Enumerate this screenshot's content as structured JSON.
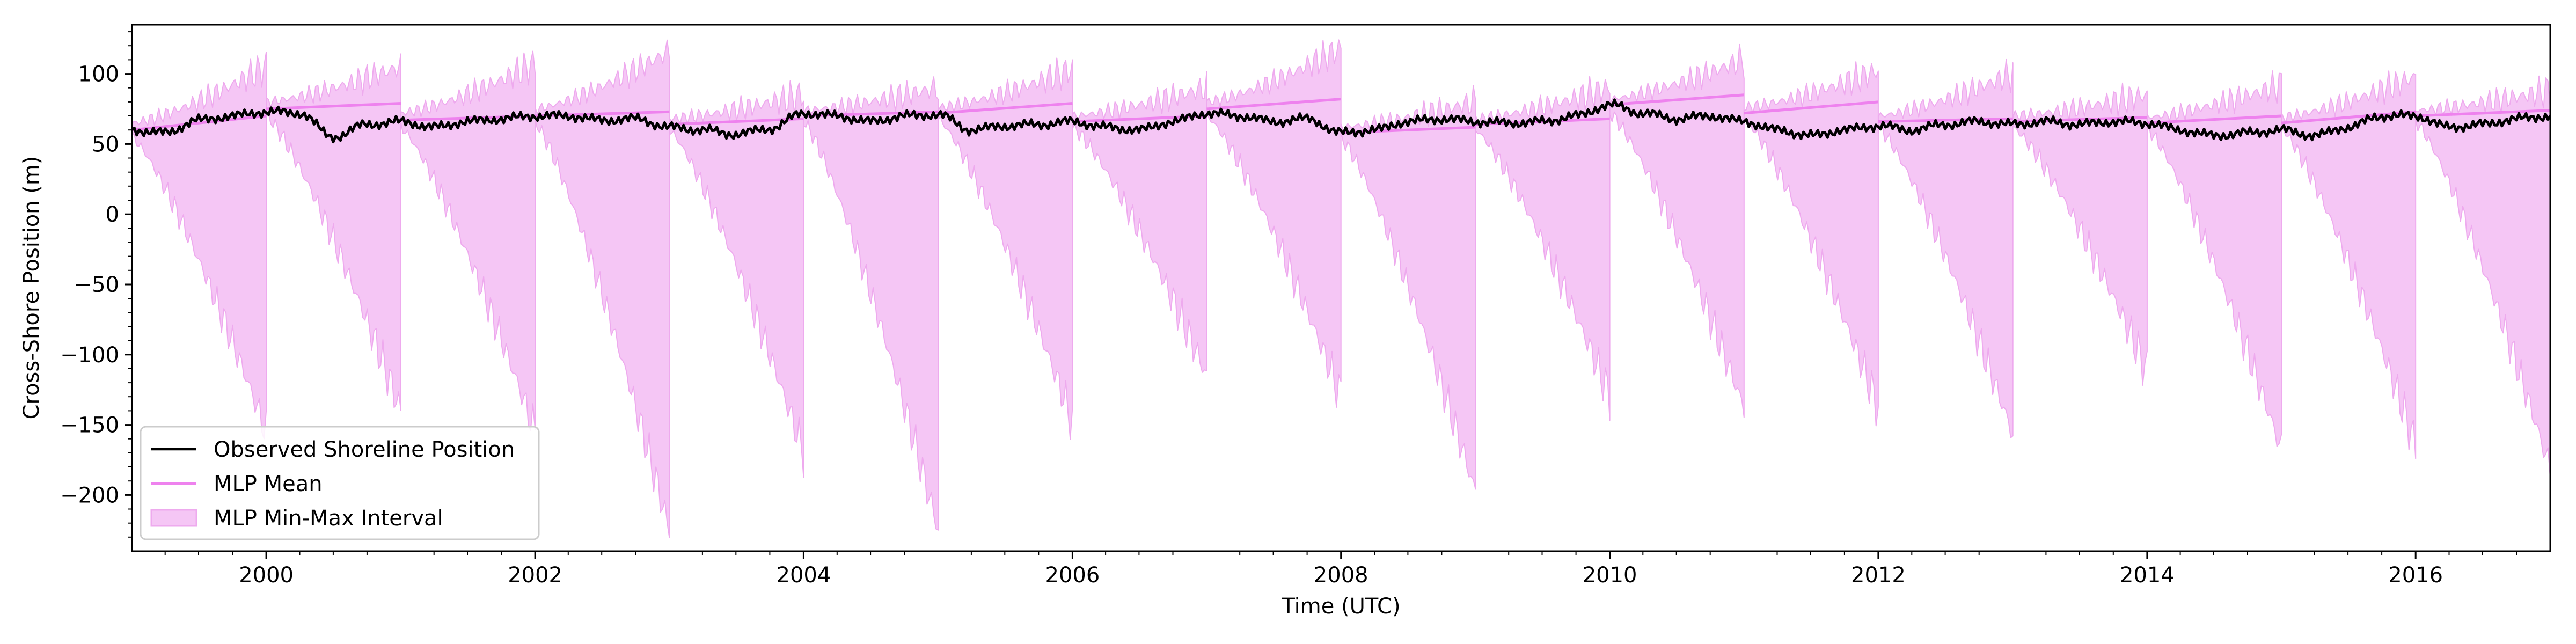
{
  "chart_data": {
    "type": "line",
    "title": "",
    "xlabel": "Time (UTC)",
    "ylabel": "Cross-Shore Position (m)",
    "xlim": [
      "1999-01-01",
      "2017-01-01"
    ],
    "ylim": [
      -240,
      135
    ],
    "x_ticks": [
      "2000",
      "2002",
      "2004",
      "2006",
      "2008",
      "2010",
      "2012",
      "2014",
      "2016"
    ],
    "y_ticks": [
      100,
      50,
      0,
      -50,
      -100,
      -150,
      -200
    ],
    "y_tick_labels": [
      "100",
      "50",
      "0",
      "−50",
      "−100",
      "−150",
      "−200"
    ],
    "grid": false,
    "legend_position": "lower-left",
    "legend": {
      "observed": "Observed Shoreline Position",
      "mean": "MLP Mean",
      "interval": "MLP Min-Max Interval"
    },
    "colors": {
      "observed": "#000000",
      "mean": "#ee82ee",
      "interval_fill": "#f5c6f5",
      "interval_edge": "#eeaaee"
    },
    "observed": {
      "name": "Observed Shoreline Position",
      "points": [
        [
          "1999-01-01",
          60
        ],
        [
          "1999-04-01",
          58
        ],
        [
          "1999-07-01",
          67
        ],
        [
          "1999-10-01",
          70
        ],
        [
          "2000-01-01",
          73
        ],
        [
          "2000-04-01",
          72
        ],
        [
          "2000-07-01",
          55
        ],
        [
          "2000-10-01",
          64
        ],
        [
          "2001-01-01",
          66
        ],
        [
          "2001-04-01",
          62
        ],
        [
          "2001-07-01",
          66
        ],
        [
          "2001-10-01",
          68
        ],
        [
          "2002-01-01",
          70
        ],
        [
          "2002-04-01",
          70
        ],
        [
          "2002-07-01",
          67
        ],
        [
          "2002-10-01",
          68
        ],
        [
          "2003-01-01",
          62
        ],
        [
          "2003-04-01",
          60
        ],
        [
          "2003-07-01",
          57
        ],
        [
          "2003-10-01",
          61
        ],
        [
          "2004-01-01",
          72
        ],
        [
          "2004-04-01",
          70
        ],
        [
          "2004-07-01",
          66
        ],
        [
          "2004-10-01",
          70
        ],
        [
          "2005-01-01",
          71
        ],
        [
          "2005-04-01",
          60
        ],
        [
          "2005-07-01",
          63
        ],
        [
          "2005-10-01",
          64
        ],
        [
          "2006-01-01",
          66
        ],
        [
          "2006-04-01",
          62
        ],
        [
          "2006-07-01",
          60
        ],
        [
          "2006-10-01",
          66
        ],
        [
          "2007-01-01",
          72
        ],
        [
          "2007-04-01",
          70
        ],
        [
          "2007-07-01",
          66
        ],
        [
          "2007-10-01",
          68
        ],
        [
          "2008-01-01",
          58
        ],
        [
          "2008-04-01",
          60
        ],
        [
          "2008-07-01",
          66
        ],
        [
          "2008-10-01",
          68
        ],
        [
          "2009-01-01",
          66
        ],
        [
          "2009-04-01",
          65
        ],
        [
          "2009-07-01",
          66
        ],
        [
          "2009-10-01",
          70
        ],
        [
          "2010-01-01",
          78
        ],
        [
          "2010-04-01",
          72
        ],
        [
          "2010-07-01",
          68
        ],
        [
          "2010-10-01",
          70
        ],
        [
          "2011-01-01",
          66
        ],
        [
          "2011-04-01",
          60
        ],
        [
          "2011-07-01",
          56
        ],
        [
          "2011-10-01",
          60
        ],
        [
          "2012-01-01",
          63
        ],
        [
          "2012-04-01",
          60
        ],
        [
          "2012-07-01",
          64
        ],
        [
          "2012-10-01",
          66
        ],
        [
          "2013-01-01",
          64
        ],
        [
          "2013-04-01",
          66
        ],
        [
          "2013-07-01",
          64
        ],
        [
          "2013-10-01",
          66
        ],
        [
          "2014-01-01",
          65
        ],
        [
          "2014-04-01",
          60
        ],
        [
          "2014-07-01",
          56
        ],
        [
          "2014-10-01",
          58
        ],
        [
          "2015-01-01",
          60
        ],
        [
          "2015-04-01",
          56
        ],
        [
          "2015-07-01",
          62
        ],
        [
          "2015-10-01",
          70
        ],
        [
          "2016-01-01",
          70
        ],
        [
          "2016-04-01",
          62
        ],
        [
          "2016-07-01",
          64
        ],
        [
          "2016-10-01",
          68
        ],
        [
          "2017-01-01",
          70
        ]
      ]
    },
    "segments": [
      {
        "start": "1999-01-01",
        "end": "2000-01-01",
        "mean_start": 60,
        "mean_end": 70,
        "max_start": 65,
        "max_end": 105,
        "min_start": 55,
        "min_end": -155
      },
      {
        "start": "2000-01-01",
        "end": "2001-01-01",
        "mean_start": 75,
        "mean_end": 79,
        "max_start": 80,
        "max_end": 105,
        "min_start": 70,
        "min_end": -140
      },
      {
        "start": "2001-01-01",
        "end": "2002-01-01",
        "mean_start": 67,
        "mean_end": 70,
        "max_start": 72,
        "max_end": 107,
        "min_start": 62,
        "min_end": -155
      },
      {
        "start": "2002-01-01",
        "end": "2003-01-01",
        "mean_start": 70,
        "mean_end": 73,
        "max_start": 75,
        "max_end": 116,
        "min_start": 65,
        "min_end": -225
      },
      {
        "start": "2003-01-01",
        "end": "2004-01-01",
        "mean_start": 64,
        "mean_end": 68,
        "max_start": 68,
        "max_end": 85,
        "min_start": 60,
        "min_end": -170
      },
      {
        "start": "2004-01-01",
        "end": "2005-01-01",
        "mean_start": 70,
        "mean_end": 73,
        "max_start": 74,
        "max_end": 90,
        "min_start": 66,
        "min_end": -225
      },
      {
        "start": "2005-01-01",
        "end": "2006-01-01",
        "mean_start": 72,
        "mean_end": 79,
        "max_start": 76,
        "max_end": 103,
        "min_start": 68,
        "min_end": -148
      },
      {
        "start": "2006-01-01",
        "end": "2007-01-01",
        "mean_start": 66,
        "mean_end": 70,
        "max_start": 70,
        "max_end": 90,
        "min_start": 62,
        "min_end": -115
      },
      {
        "start": "2007-01-01",
        "end": "2008-01-01",
        "mean_start": 75,
        "mean_end": 82,
        "max_start": 80,
        "max_end": 118,
        "min_start": 70,
        "min_end": -130
      },
      {
        "start": "2008-01-01",
        "end": "2009-01-01",
        "mean_start": 58,
        "mean_end": 62,
        "max_start": 62,
        "max_end": 80,
        "min_start": 54,
        "min_end": -198
      },
      {
        "start": "2009-01-01",
        "end": "2010-01-01",
        "mean_start": 64,
        "mean_end": 68,
        "max_start": 68,
        "max_end": 90,
        "min_start": 60,
        "min_end": -130
      },
      {
        "start": "2010-01-01",
        "end": "2011-01-01",
        "mean_start": 78,
        "mean_end": 85,
        "max_start": 82,
        "max_end": 110,
        "min_start": 72,
        "min_end": -138
      },
      {
        "start": "2011-01-01",
        "end": "2012-01-01",
        "mean_start": 72,
        "mean_end": 80,
        "max_start": 76,
        "max_end": 102,
        "min_start": 68,
        "min_end": -138
      },
      {
        "start": "2012-01-01",
        "end": "2013-01-01",
        "mean_start": 66,
        "mean_end": 68,
        "max_start": 70,
        "max_end": 100,
        "min_start": 62,
        "min_end": -157
      },
      {
        "start": "2013-01-01",
        "end": "2014-01-01",
        "mean_start": 66,
        "mean_end": 69,
        "max_start": 70,
        "max_end": 85,
        "min_start": 62,
        "min_end": -112
      },
      {
        "start": "2014-01-01",
        "end": "2015-01-01",
        "mean_start": 65,
        "mean_end": 70,
        "max_start": 69,
        "max_end": 92,
        "min_start": 61,
        "min_end": -168
      },
      {
        "start": "2015-01-01",
        "end": "2016-01-01",
        "mean_start": 65,
        "mean_end": 73,
        "max_start": 69,
        "max_end": 98,
        "min_start": 61,
        "min_end": -165
      },
      {
        "start": "2016-01-01",
        "end": "2017-01-01",
        "mean_start": 70,
        "mean_end": 74,
        "max_start": 74,
        "max_end": 88,
        "min_start": 66,
        "min_end": -182
      }
    ]
  }
}
